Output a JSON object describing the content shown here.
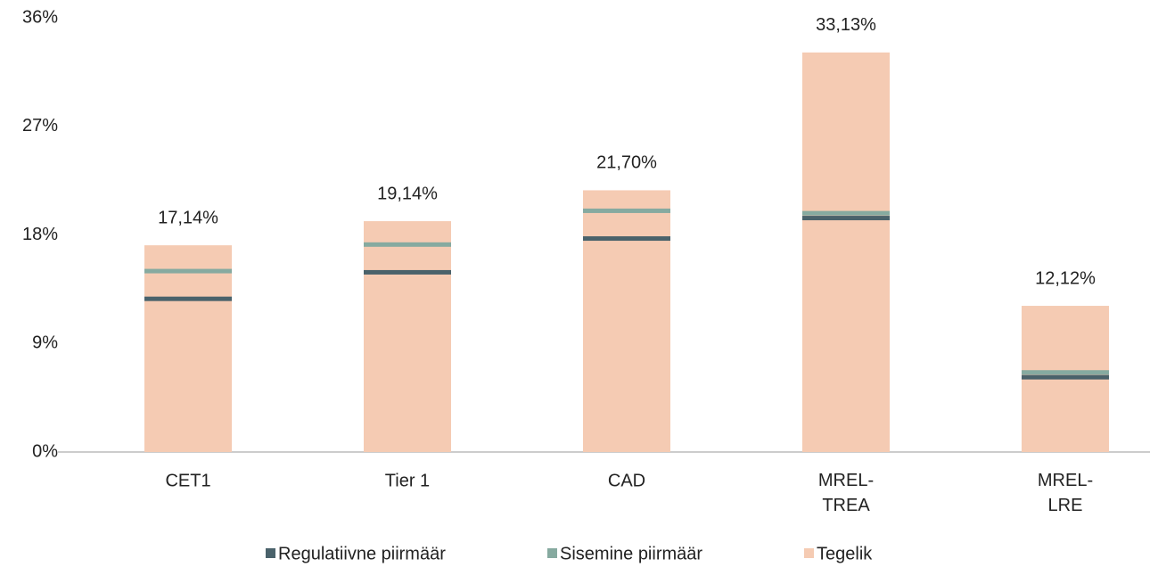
{
  "chart_data": {
    "type": "bar",
    "categories": [
      "CET1",
      "Tier 1",
      "CAD",
      "MREL-TREA",
      "MREL-LRE"
    ],
    "series": [
      {
        "name": "Regulatiivne piirmäär",
        "type": "marker",
        "color": "#4a626b",
        "values": [
          12.7,
          14.9,
          17.7,
          19.4,
          6.2
        ]
      },
      {
        "name": "Sisemine piirmäär",
        "type": "marker",
        "color": "#86aaa0",
        "values": [
          15.0,
          17.2,
          20.0,
          19.8,
          6.6
        ]
      },
      {
        "name": "Tegelik",
        "type": "bar",
        "color": "#f5cbb3",
        "values": [
          17.14,
          19.14,
          21.7,
          33.13,
          12.12
        ],
        "value_labels": [
          "17,14%",
          "19,14%",
          "21,70%",
          "33,13%",
          "12,12%"
        ]
      }
    ],
    "ylim": [
      0,
      36
    ],
    "yticks": [
      {
        "value": 0,
        "label": "0%"
      },
      {
        "value": 9,
        "label": "9%"
      },
      {
        "value": 18,
        "label": "18%"
      },
      {
        "value": 27,
        "label": "27%"
      },
      {
        "value": 36,
        "label": "36%"
      }
    ],
    "grid": false,
    "legend": "bottom"
  }
}
